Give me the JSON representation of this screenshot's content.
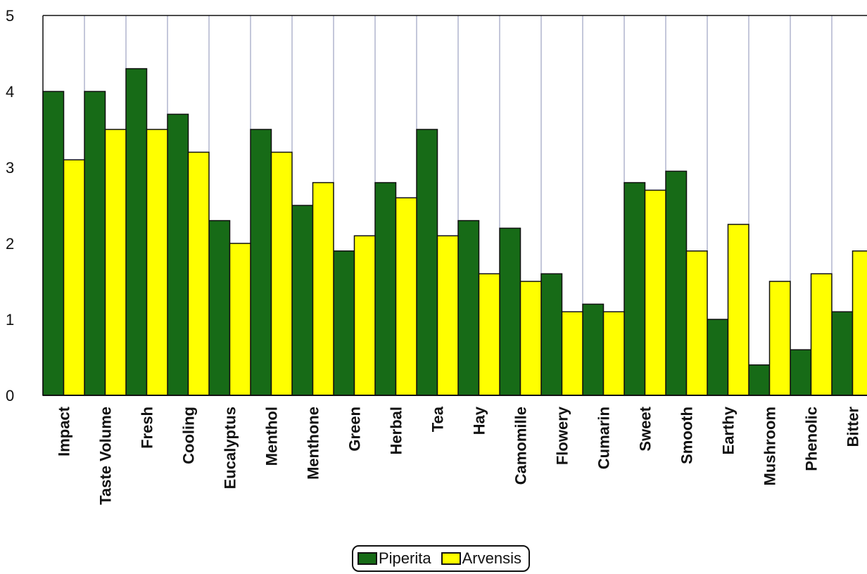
{
  "chart_data": {
    "type": "bar",
    "title": "",
    "xlabel": "",
    "ylabel": "",
    "ylim": [
      0,
      5
    ],
    "yticks": [
      "0",
      "1",
      "2",
      "3",
      "4",
      "5"
    ],
    "grid": "vertical category separators",
    "legend_position": "bottom-center",
    "categories": [
      "Impact",
      "Taste Volume",
      "Fresh",
      "Cooling",
      "Eucalyptus",
      "Menthol",
      "Menthone",
      "Green",
      "Herbal",
      "Tea",
      "Hay",
      "Camomille",
      "Flowery",
      "Cumarin",
      "Sweet",
      "Smooth",
      "Earthy",
      "Mushroom",
      "Phenolic",
      "Bitter"
    ],
    "series": [
      {
        "name": "Piperita",
        "color": "#176b17",
        "values": [
          4.0,
          4.0,
          4.3,
          3.7,
          2.3,
          3.5,
          2.5,
          1.9,
          2.8,
          3.5,
          2.3,
          2.2,
          1.6,
          1.2,
          2.8,
          2.95,
          1.0,
          0.4,
          0.6,
          1.1
        ]
      },
      {
        "name": "Arvensis",
        "color": "#ffff00",
        "values": [
          3.1,
          3.5,
          3.5,
          3.2,
          2.0,
          3.2,
          2.8,
          2.1,
          2.6,
          2.1,
          1.6,
          1.5,
          1.1,
          1.1,
          2.7,
          1.9,
          2.25,
          1.5,
          1.6,
          1.9
        ]
      }
    ]
  }
}
